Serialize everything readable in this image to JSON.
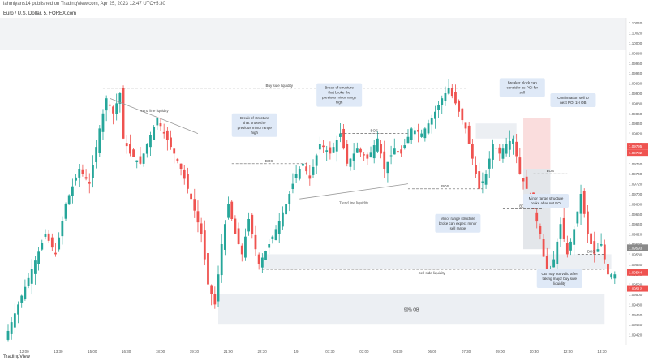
{
  "header": {
    "publisher": "lahmiyans14 published on TradingView.com, Apr 25, 2023 12:47 UTC+5:30",
    "symbol": "Euro / U.S. Dollar, 5, FOREX.com"
  },
  "footer": {
    "brand": "TradingView"
  },
  "colors": {
    "up": "#26a69a",
    "down": "#ef5350",
    "zone": "#eceff3",
    "note_bg": "#dfe9f7",
    "ob_red": "#f7c6c6"
  },
  "chart_data": {
    "type": "candlestick",
    "ylim": [
      1.094,
      1.1005
    ],
    "yticks": [
      "1.10050",
      "1.10040",
      "1.10030",
      "1.10020",
      "1.10010",
      "1.10000",
      "1.09990",
      "1.09980",
      "1.09970",
      "1.09960",
      "1.09950",
      "1.09940",
      "1.09930",
      "1.09920",
      "1.09910",
      "1.09900",
      "1.09890",
      "1.09880",
      "1.09870",
      "1.09860",
      "1.09850",
      "1.09840",
      "1.09830",
      "1.09820",
      "1.09810",
      "1.09800",
      "1.09790",
      "1.09780",
      "1.09770",
      "1.09760",
      "1.09750",
      "1.09740",
      "1.09730",
      "1.09720",
      "1.09710",
      "1.09700",
      "1.09690",
      "1.09680",
      "1.09670",
      "1.09660",
      "1.09650",
      "1.09640",
      "1.09630",
      "1.09620",
      "1.09610",
      "1.09600",
      "1.09590",
      "1.09580",
      "1.09570",
      "1.09560",
      "1.09550",
      "1.09540",
      "1.09530",
      "1.09520",
      "1.09510",
      "1.09500",
      "1.09490",
      "1.09480",
      "1.09470",
      "1.09460",
      "1.09450",
      "1.09440",
      "1.09430",
      "1.09420",
      "1.09410"
    ],
    "xticks": [
      "12:00",
      "13:30",
      "15:00",
      "16:30",
      "18:00",
      "19:30",
      "21:00",
      "22:30",
      "19",
      "01:30",
      "03:00",
      "04:30",
      "06:00",
      "07:30",
      "09:00",
      "10:30",
      "12:00",
      "13:30"
    ],
    "price_labels": [
      {
        "value": 1.09795,
        "text": "1.09795",
        "color": "#ef5350"
      },
      {
        "value": 1.09782,
        "text": "1.09782",
        "color": "#ef5350"
      },
      {
        "value": 1.09593,
        "text": "1.09593",
        "color": "#8a8a8a"
      },
      {
        "value": 1.09544,
        "text": "1.09544",
        "color": "#ef5350"
      },
      {
        "value": 1.09512,
        "text": "1.09512",
        "color": "#ef5350"
      }
    ],
    "key_prices": [
      {
        "name": "Buy side liquidity",
        "value": 1.0991,
        "text": "Buy side liquidity"
      },
      {
        "name": "Sell side liquidity",
        "value": 1.0955,
        "text": "Sell side liquidity"
      }
    ],
    "bos_labels": [
      "BOS",
      "BOS",
      "BOS",
      "BOS",
      "BOS",
      "BOS"
    ],
    "trend_labels": [
      "Trend line liquidity",
      "Trend line liquidity"
    ],
    "zone_label": "90% OB",
    "annotations": [
      "Break of structure that broke the previous minor range high",
      "Break of structure that broke the previous minor range high",
      "Breaker block can consider as POI for sell",
      "Confirmation sell to next POI 1H OB",
      "Minor range structure broke can expect minor sell range",
      "Minor range structure broke after nut POI",
      "OB may not valid after taking major buy side liquidity"
    ],
    "path_points": [
      [
        0,
        1.0941
      ],
      [
        4,
        1.0948
      ],
      [
        8,
        1.0955
      ],
      [
        12,
        1.0962
      ],
      [
        15,
        1.0958
      ],
      [
        18,
        1.0968
      ],
      [
        22,
        1.0975
      ],
      [
        25,
        1.0972
      ],
      [
        28,
        1.0983
      ],
      [
        30,
        1.0989
      ],
      [
        32,
        1.0986
      ],
      [
        34,
        1.099
      ],
      [
        35,
        1.0981
      ],
      [
        37,
        1.0978
      ],
      [
        40,
        1.0976
      ],
      [
        42,
        1.098
      ],
      [
        45,
        1.0985
      ],
      [
        47,
        1.0982
      ],
      [
        50,
        1.0978
      ],
      [
        52,
        1.0975
      ],
      [
        55,
        1.0969
      ],
      [
        58,
        1.0962
      ],
      [
        60,
        1.0952
      ],
      [
        62,
        1.0948
      ],
      [
        64,
        1.096
      ],
      [
        66,
        1.0968
      ],
      [
        68,
        1.0962
      ],
      [
        70,
        1.0958
      ],
      [
        72,
        1.0965
      ],
      [
        75,
        1.0956
      ],
      [
        78,
        1.096
      ],
      [
        80,
        1.0963
      ],
      [
        83,
        1.0968
      ],
      [
        86,
        1.0974
      ],
      [
        88,
        1.0976
      ],
      [
        90,
        1.0973
      ],
      [
        93,
        1.098
      ],
      [
        96,
        1.0978
      ],
      [
        99,
        1.0982
      ],
      [
        101,
        1.0976
      ],
      [
        104,
        1.0979
      ],
      [
        107,
        1.0977
      ],
      [
        110,
        1.0981
      ],
      [
        112,
        1.0975
      ],
      [
        115,
        1.0979
      ],
      [
        117,
        1.0978
      ],
      [
        120,
        1.0983
      ],
      [
        123,
        1.0982
      ],
      [
        126,
        1.0985
      ],
      [
        129,
        1.0989
      ],
      [
        131,
        1.0991
      ],
      [
        133,
        1.0988
      ],
      [
        136,
        1.0983
      ],
      [
        138,
        1.0977
      ],
      [
        140,
        1.0971
      ],
      [
        142,
        1.0974
      ],
      [
        144,
        1.098
      ],
      [
        146,
        1.0978
      ],
      [
        148,
        1.098
      ],
      [
        150,
        1.0981
      ],
      [
        152,
        1.0974
      ],
      [
        154,
        1.0971
      ],
      [
        156,
        1.0967
      ],
      [
        158,
        1.0962
      ],
      [
        160,
        1.0953
      ],
      [
        162,
        1.0957
      ],
      [
        164,
        1.0964
      ],
      [
        166,
        1.0958
      ],
      [
        168,
        1.0963
      ],
      [
        170,
        1.097
      ],
      [
        172,
        1.0962
      ],
      [
        174,
        1.0958
      ],
      [
        176,
        1.096
      ],
      [
        178,
        1.0954
      ]
    ]
  }
}
